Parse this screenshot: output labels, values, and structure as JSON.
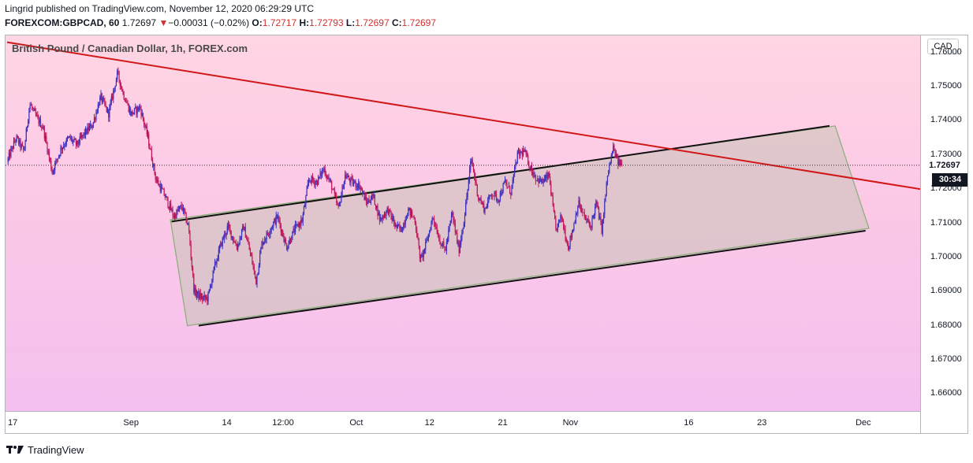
{
  "header": {
    "publisher_line": "Lingrid published on TradingView.com, November 12, 2020 06:29:29 UTC",
    "symbol": "FOREXCOM:GBPCAD, 60",
    "price": "1.72697",
    "change_arrow": "▼",
    "change": "−0.00031 (−0.02%)",
    "open_label": "O:",
    "open": "1.72717",
    "high_label": "H:",
    "high": "1.72793",
    "low_label": "L:",
    "low": "1.72697",
    "close_label": "C:",
    "close": "1.72697"
  },
  "chart_data": {
    "type": "candlestick",
    "title": "British Pound / Canadian Dollar, 1h, FOREX.com",
    "currency": "CAD",
    "ylim": [
      1.655,
      1.765
    ],
    "y_ticks": [
      "1.76000",
      "1.75000",
      "1.74000",
      "1.73000",
      "1.72000",
      "1.71000",
      "1.70000",
      "1.69000",
      "1.68000",
      "1.67000",
      "1.66000"
    ],
    "x_ticks": [
      "17",
      "Sep",
      "14",
      "12:00",
      "Oct",
      "12",
      "21",
      "Nov",
      "16",
      "23",
      "Dec"
    ],
    "last_price": "1.72697",
    "countdown": "30:34",
    "price_path": [
      [
        0.0,
        1.728
      ],
      [
        0.8,
        1.735
      ],
      [
        1.5,
        1.731
      ],
      [
        2.0,
        1.745
      ],
      [
        2.6,
        1.741
      ],
      [
        3.2,
        1.738
      ],
      [
        4.0,
        1.725
      ],
      [
        4.8,
        1.732
      ],
      [
        5.5,
        1.735
      ],
      [
        6.2,
        1.733
      ],
      [
        6.8,
        1.736
      ],
      [
        7.6,
        1.739
      ],
      [
        8.3,
        1.747
      ],
      [
        9.0,
        1.742
      ],
      [
        9.8,
        1.754
      ],
      [
        10.3,
        1.748
      ],
      [
        11.0,
        1.742
      ],
      [
        11.8,
        1.744
      ],
      [
        12.5,
        1.735
      ],
      [
        13.2,
        1.723
      ],
      [
        14.0,
        1.718
      ],
      [
        14.8,
        1.712
      ],
      [
        15.5,
        1.715
      ],
      [
        16.1,
        1.709
      ],
      [
        16.6,
        1.69
      ],
      [
        17.3,
        1.688
      ],
      [
        17.8,
        1.688
      ],
      [
        18.4,
        1.697
      ],
      [
        19.0,
        1.704
      ],
      [
        19.6,
        1.709
      ],
      [
        20.4,
        1.703
      ],
      [
        21.0,
        1.709
      ],
      [
        21.6,
        1.701
      ],
      [
        22.1,
        1.693
      ],
      [
        22.6,
        1.704
      ],
      [
        23.3,
        1.708
      ],
      [
        24.0,
        1.712
      ],
      [
        24.8,
        1.703
      ],
      [
        25.5,
        1.708
      ],
      [
        26.2,
        1.711
      ],
      [
        26.8,
        1.723
      ],
      [
        27.5,
        1.722
      ],
      [
        28.1,
        1.726
      ],
      [
        28.8,
        1.721
      ],
      [
        29.4,
        1.714
      ],
      [
        30.0,
        1.724
      ],
      [
        30.6,
        1.722
      ],
      [
        31.3,
        1.721
      ],
      [
        31.9,
        1.716
      ],
      [
        32.5,
        1.718
      ],
      [
        33.1,
        1.711
      ],
      [
        33.8,
        1.714
      ],
      [
        34.5,
        1.709
      ],
      [
        35.0,
        1.708
      ],
      [
        35.6,
        1.714
      ],
      [
        36.2,
        1.711
      ],
      [
        36.7,
        1.699
      ],
      [
        37.2,
        1.704
      ],
      [
        37.8,
        1.712
      ],
      [
        38.4,
        1.705
      ],
      [
        38.9,
        1.702
      ],
      [
        39.5,
        1.713
      ],
      [
        40.1,
        1.702
      ],
      [
        40.6,
        1.712
      ],
      [
        41.2,
        1.729
      ],
      [
        41.8,
        1.718
      ],
      [
        42.4,
        1.714
      ],
      [
        43.0,
        1.719
      ],
      [
        43.6,
        1.717
      ],
      [
        44.2,
        1.722
      ],
      [
        44.7,
        1.719
      ],
      [
        45.3,
        1.73
      ],
      [
        45.9,
        1.731
      ],
      [
        46.5,
        1.726
      ],
      [
        47.0,
        1.723
      ],
      [
        47.5,
        1.722
      ],
      [
        48.1,
        1.724
      ],
      [
        48.7,
        1.708
      ],
      [
        49.2,
        1.712
      ],
      [
        49.8,
        1.703
      ],
      [
        50.2,
        1.708
      ],
      [
        50.7,
        1.716
      ],
      [
        51.2,
        1.712
      ],
      [
        51.8,
        1.709
      ],
      [
        52.3,
        1.716
      ],
      [
        52.8,
        1.708
      ],
      [
        53.3,
        1.724
      ],
      [
        53.8,
        1.732
      ],
      [
        54.2,
        1.728
      ],
      [
        54.6,
        1.727
      ]
    ]
  },
  "footer": {
    "brand": "TradingView"
  }
}
